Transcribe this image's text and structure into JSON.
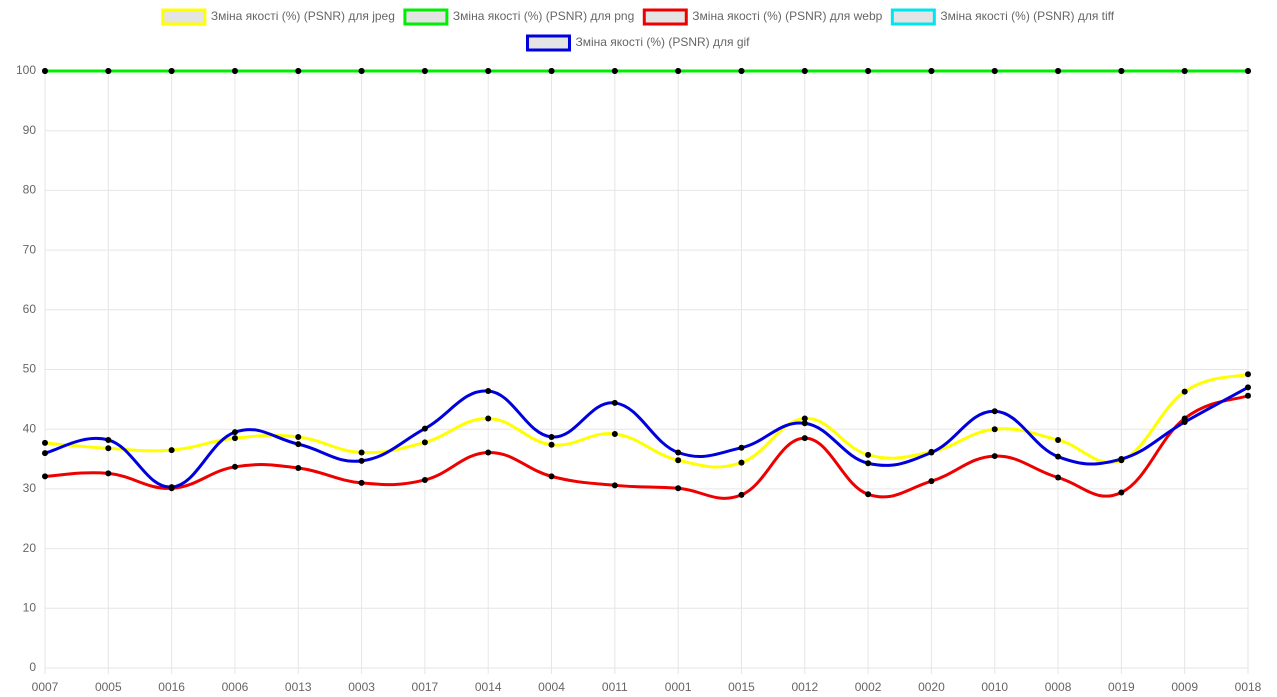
{
  "chart_data": {
    "type": "line",
    "categories": [
      "0007",
      "0005",
      "0016",
      "0006",
      "0013",
      "0003",
      "0017",
      "0014",
      "0004",
      "0011",
      "0001",
      "0015",
      "0012",
      "0002",
      "0020",
      "0010",
      "0008",
      "0019",
      "0009",
      "0018"
    ],
    "series": [
      {
        "name": "Зміна якості (%) (PSNR) для jpeg",
        "color": "#ffff00",
        "values": [
          37.7,
          36.8,
          36.5,
          38.5,
          38.7,
          36.1,
          37.8,
          41.8,
          37.4,
          39.2,
          34.8,
          34.4,
          41.8,
          35.7,
          36.2,
          40.0,
          38.2,
          34.8,
          46.3,
          49.2
        ]
      },
      {
        "name": "Зміна якості (%) (PSNR) для png",
        "color": "#00ee00",
        "values": [
          100,
          100,
          100,
          100,
          100,
          100,
          100,
          100,
          100,
          100,
          100,
          100,
          100,
          100,
          100,
          100,
          100,
          100,
          100,
          100
        ]
      },
      {
        "name": "Зміна якості (%) (PSNR) для webp",
        "color": "#ee0000",
        "values": [
          32.1,
          32.6,
          30.1,
          33.7,
          33.5,
          31.0,
          31.5,
          36.1,
          32.1,
          30.6,
          30.1,
          29.0,
          38.5,
          29.1,
          31.3,
          35.5,
          31.9,
          29.4,
          41.8,
          45.6
        ]
      },
      {
        "name": "Зміна якості (%) (PSNR) для tiff",
        "color": "#00e5ee",
        "values": [
          100,
          100,
          100,
          100,
          100,
          100,
          100,
          100,
          100,
          100,
          100,
          100,
          100,
          100,
          100,
          100,
          100,
          100,
          100,
          100
        ]
      },
      {
        "name": "Зміна якості (%) (PSNR) для gif",
        "color": "#0000dd",
        "values": [
          36.0,
          38.2,
          30.3,
          39.5,
          37.5,
          34.7,
          40.1,
          46.4,
          38.7,
          44.4,
          36.1,
          36.9,
          41.0,
          34.3,
          36.1,
          43.0,
          35.4,
          35.0,
          41.2,
          47.0
        ]
      }
    ],
    "ylim": [
      0,
      100
    ],
    "yticks": [
      0,
      10,
      20,
      30,
      40,
      50,
      60,
      70,
      80,
      90,
      100
    ],
    "grid": true
  }
}
